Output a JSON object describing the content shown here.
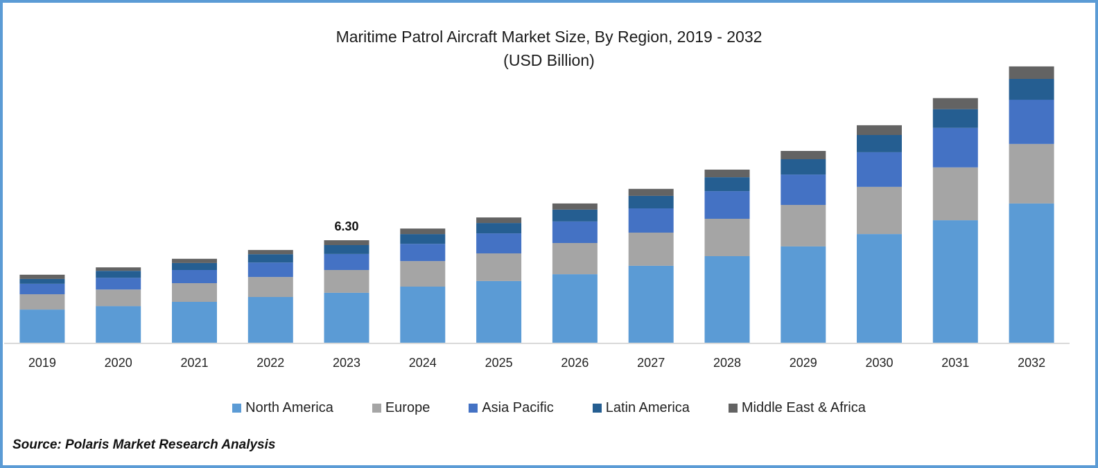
{
  "chart_data": {
    "type": "bar",
    "stacked": true,
    "title": "Maritime Patrol Aircraft Market Size, By Region, 2019 - 2032",
    "subtitle": "(USD Billion)",
    "xlabel": "",
    "ylabel": "",
    "categories": [
      "2019",
      "2020",
      "2021",
      "2022",
      "2023",
      "2024",
      "2025",
      "2026",
      "2027",
      "2028",
      "2029",
      "2030",
      "2031",
      "2032"
    ],
    "series": [
      {
        "name": "North America",
        "color": "#5b9bd5",
        "values": [
          2.04,
          2.25,
          2.51,
          2.81,
          3.07,
          3.45,
          3.79,
          4.21,
          4.73,
          5.32,
          5.92,
          6.68,
          7.53,
          8.56
        ]
      },
      {
        "name": "Europe",
        "color": "#a5a5a5",
        "values": [
          0.94,
          1.02,
          1.15,
          1.23,
          1.4,
          1.57,
          1.7,
          1.92,
          2.04,
          2.3,
          2.55,
          2.9,
          3.25,
          3.66
        ]
      },
      {
        "name": "Asia Pacific",
        "color": "#4472c4",
        "values": [
          0.64,
          0.72,
          0.81,
          0.89,
          0.98,
          1.06,
          1.23,
          1.32,
          1.49,
          1.7,
          1.87,
          2.13,
          2.43,
          2.72
        ]
      },
      {
        "name": "Latin America",
        "color": "#255e91",
        "values": [
          0.3,
          0.43,
          0.43,
          0.51,
          0.55,
          0.6,
          0.64,
          0.73,
          0.77,
          0.85,
          0.94,
          1.06,
          1.15,
          1.28
        ]
      },
      {
        "name": "Middle East & Africa",
        "color": "#636363",
        "values": [
          0.26,
          0.21,
          0.26,
          0.26,
          0.3,
          0.34,
          0.34,
          0.38,
          0.43,
          0.47,
          0.51,
          0.6,
          0.68,
          0.77
        ]
      }
    ],
    "data_labels": [
      {
        "category": "2023",
        "text": "6.30"
      }
    ],
    "ylim": [
      0,
      18
    ],
    "grid": false,
    "legend": "bottom"
  },
  "source": "Source: Polaris Market Research Analysis"
}
